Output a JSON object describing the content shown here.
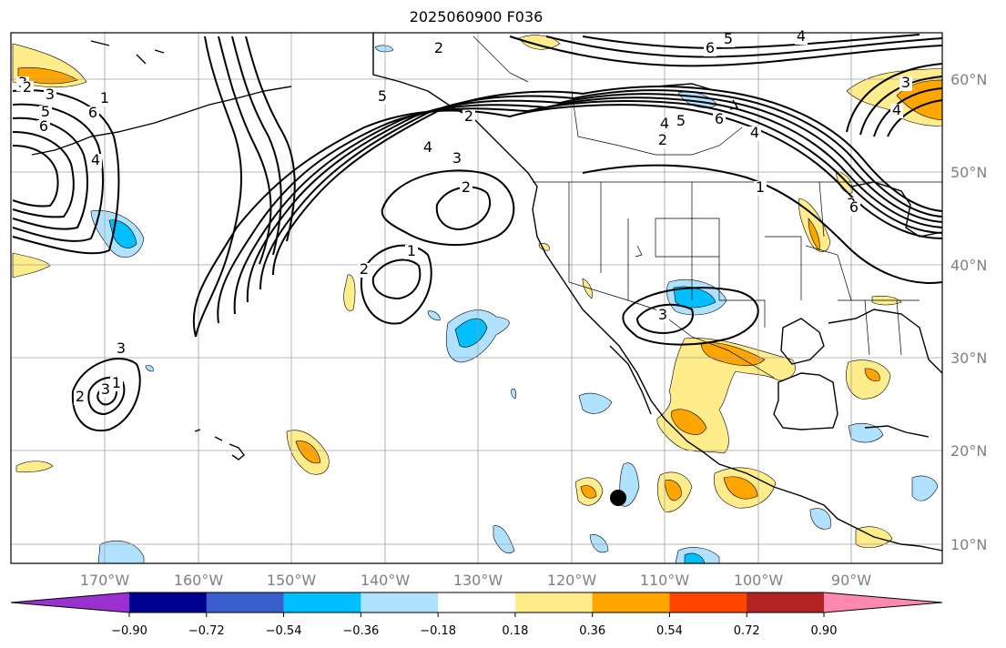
{
  "title": "2025060900 F036",
  "lon_ticks": [
    "170°W",
    "160°W",
    "150°W",
    "140°W",
    "130°W",
    "120°W",
    "110°W",
    "100°W",
    "90°W"
  ],
  "lat_ticks": [
    "60°N",
    "50°N",
    "40°N",
    "30°N",
    "20°N",
    "10°N"
  ],
  "colorbar": {
    "colors": [
      "#9b30d0",
      "#000090",
      "#3a5fcd",
      "#00bfff",
      "#b0e2ff",
      "#ffffff",
      "#ffec8b",
      "#ffa500",
      "#ff4500",
      "#b22222",
      "#ff88b0"
    ],
    "tick_labels": [
      "−0.90",
      "−0.72",
      "−0.54",
      "−0.36",
      "−0.18",
      "0.18",
      "0.36",
      "0.54",
      "0.72",
      "0.90"
    ]
  },
  "contour_labels": [
    "6",
    "5",
    "4",
    "3",
    "3",
    "2",
    "1",
    "6",
    "5",
    "4",
    "3",
    "2",
    "1",
    "2",
    "3",
    "2",
    "6",
    "5",
    "4",
    "3",
    "4",
    "5",
    "6",
    "4",
    "2",
    "1",
    "3",
    "4",
    "6",
    "3",
    "2",
    "1",
    "3",
    "2"
  ],
  "marker": "black-dot"
}
